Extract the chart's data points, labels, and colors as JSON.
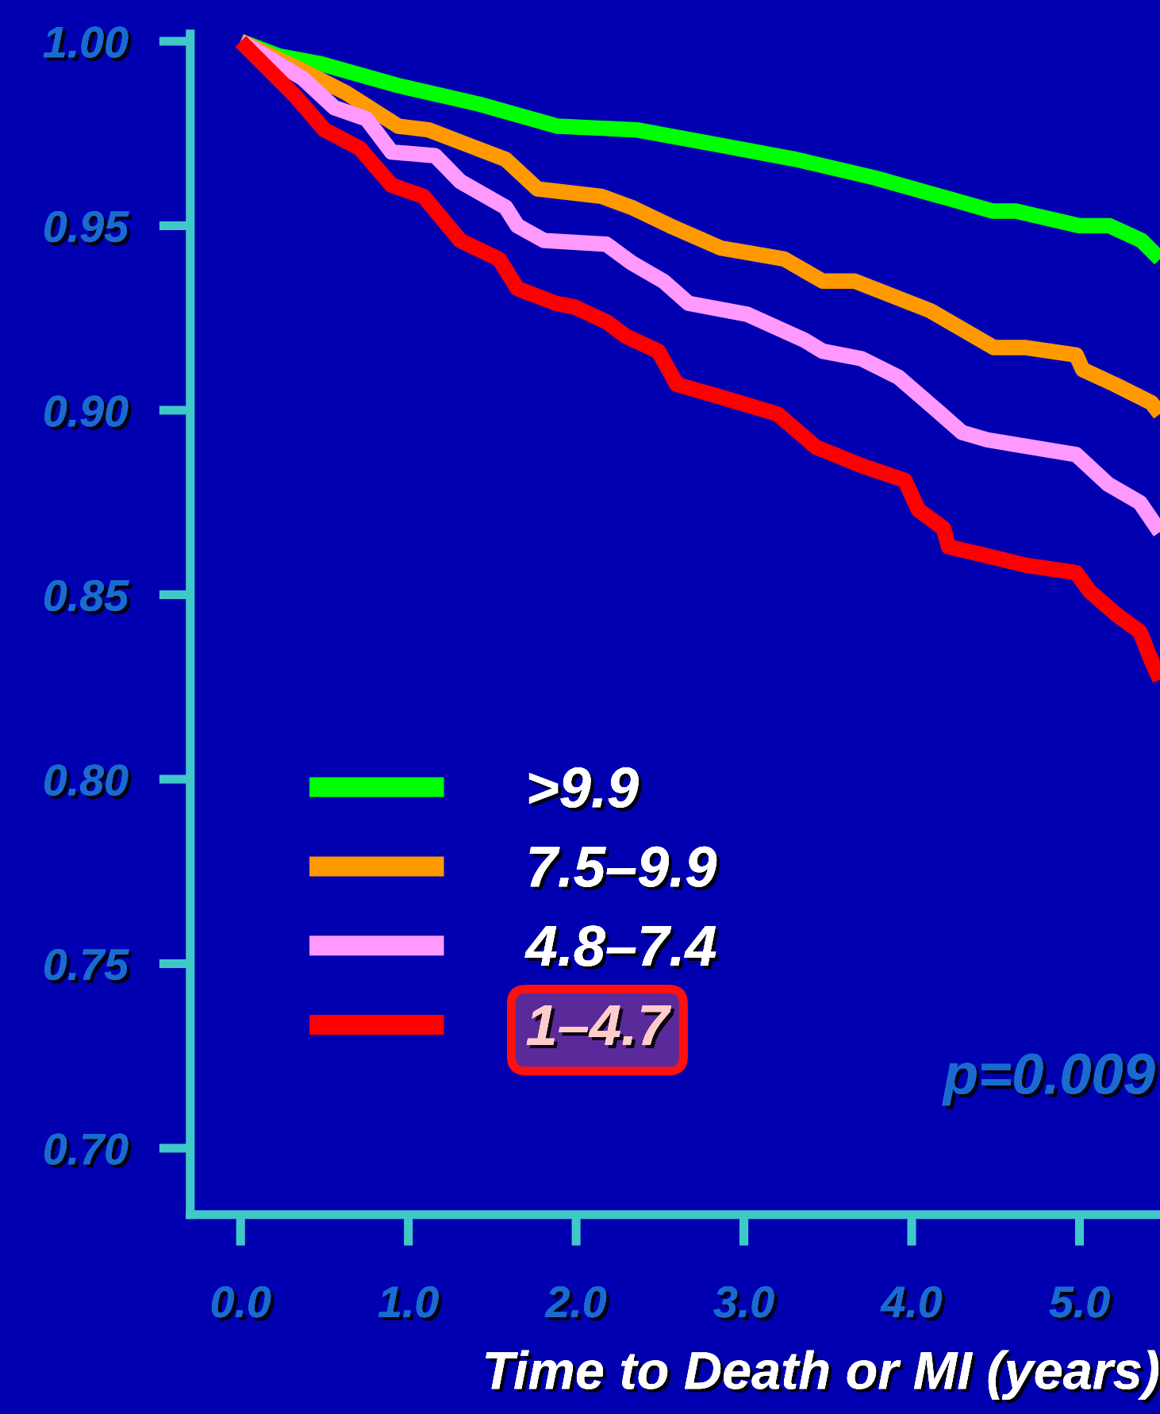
{
  "chart_data": {
    "type": "line",
    "xlabel": "Time to Death or MI (years)",
    "xlim": [
      -0.3,
      5.48
    ],
    "ylim": [
      0.682,
      1.002
    ],
    "xticks": [
      {
        "value": 0,
        "label": "0.0"
      },
      {
        "value": 1,
        "label": "1.0"
      },
      {
        "value": 2,
        "label": "2.0"
      },
      {
        "value": 3,
        "label": "3.0"
      },
      {
        "value": 4,
        "label": "4.0"
      },
      {
        "value": 5,
        "label": "5.0"
      }
    ],
    "yticks": [
      {
        "value": 0.7,
        "label": "0.70"
      },
      {
        "value": 0.75,
        "label": "0.75"
      },
      {
        "value": 0.8,
        "label": "0.80"
      },
      {
        "value": 0.85,
        "label": "0.85"
      },
      {
        "value": 0.9,
        "label": "0.90"
      },
      {
        "value": 0.95,
        "label": "0.95"
      },
      {
        "value": 1.0,
        "label": "1.00"
      }
    ],
    "legend": "bottom left",
    "annotations": [
      "p=0.009"
    ],
    "series": [
      {
        "name": ">9.9",
        "color": "#00ff00",
        "x": [
          0,
          0.23,
          0.47,
          0.94,
          1.42,
          1.89,
          2.36,
          2.84,
          3.31,
          3.78,
          4.25,
          4.48,
          4.62,
          5.0,
          5.18,
          5.37,
          5.48
        ],
        "values": [
          1.0,
          0.996,
          0.994,
          0.988,
          0.983,
          0.977,
          0.976,
          0.972,
          0.968,
          0.963,
          0.957,
          0.954,
          0.954,
          0.95,
          0.95,
          0.946,
          0.941
        ]
      },
      {
        "name": "7.5–9.9",
        "color": "#ff9900",
        "x": [
          0,
          0.37,
          0.63,
          0.94,
          1.12,
          1.35,
          1.58,
          1.77,
          2.15,
          2.33,
          2.56,
          2.86,
          3.24,
          3.47,
          3.66,
          4.11,
          4.49,
          4.68,
          4.98,
          5.02,
          5.21,
          5.43,
          5.48
        ],
        "values": [
          1.0,
          0.992,
          0.986,
          0.977,
          0.976,
          0.972,
          0.968,
          0.96,
          0.958,
          0.955,
          0.95,
          0.944,
          0.941,
          0.935,
          0.935,
          0.927,
          0.917,
          0.917,
          0.915,
          0.911,
          0.907,
          0.902,
          0.899
        ]
      },
      {
        "name": "4.8–7.4",
        "color": "#ff99ff",
        "x": [
          0,
          0.37,
          0.56,
          0.75,
          0.9,
          1.16,
          1.31,
          1.58,
          1.65,
          1.81,
          2.18,
          2.33,
          2.52,
          2.67,
          3.02,
          3.36,
          3.47,
          3.7,
          3.92,
          4.15,
          4.3,
          4.45,
          4.98,
          5.17,
          5.36,
          5.48
        ],
        "values": [
          1.0,
          0.99,
          0.982,
          0.979,
          0.97,
          0.969,
          0.962,
          0.955,
          0.95,
          0.946,
          0.945,
          0.94,
          0.935,
          0.929,
          0.926,
          0.919,
          0.916,
          0.914,
          0.909,
          0.9,
          0.894,
          0.892,
          0.888,
          0.88,
          0.875,
          0.867
        ]
      },
      {
        "name": "1–4.7",
        "color": "#ff0000",
        "x": [
          0,
          0.33,
          0.5,
          0.71,
          0.9,
          1.09,
          1.31,
          1.54,
          1.65,
          1.88,
          1.99,
          2.18,
          2.3,
          2.49,
          2.6,
          2.83,
          3.2,
          3.43,
          3.7,
          3.96,
          4.04,
          4.19,
          4.22,
          4.41,
          4.68,
          4.98,
          5.06,
          5.21,
          5.36,
          5.43,
          5.48
        ],
        "values": [
          1.0,
          0.985,
          0.976,
          0.971,
          0.961,
          0.958,
          0.946,
          0.941,
          0.933,
          0.929,
          0.928,
          0.924,
          0.92,
          0.916,
          0.907,
          0.904,
          0.899,
          0.89,
          0.885,
          0.881,
          0.873,
          0.868,
          0.863,
          0.861,
          0.858,
          0.856,
          0.851,
          0.845,
          0.84,
          0.832,
          0.827
        ]
      }
    ]
  }
}
